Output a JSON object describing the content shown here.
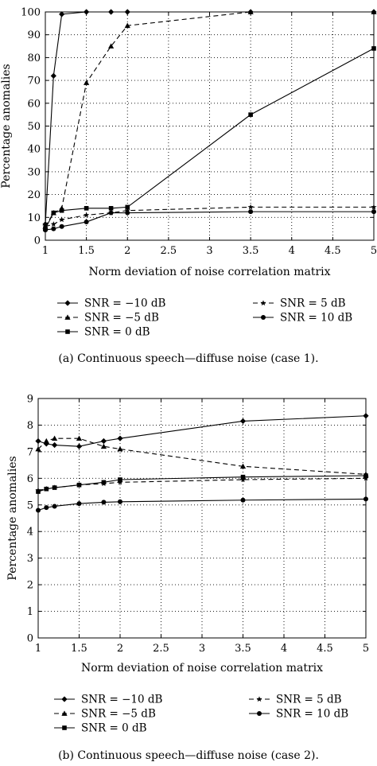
{
  "chart_data": [
    {
      "type": "line",
      "caption": "(a) Continuous speech—diffuse noise (case 1).",
      "xlabel": "Norm deviation of noise correlation matrix",
      "ylabel": "Percentage anomalies",
      "xlim": [
        1,
        5
      ],
      "ylim": [
        0,
        100
      ],
      "xticks": [
        1,
        1.5,
        2,
        2.5,
        3,
        3.5,
        4,
        4.5,
        5
      ],
      "xtick_labels": [
        "1",
        "1.5",
        "2",
        "2.5",
        "3",
        "3.5",
        "4",
        "4.5",
        "5"
      ],
      "yticks": [
        0,
        10,
        20,
        30,
        40,
        50,
        60,
        70,
        80,
        90,
        100
      ],
      "ytick_labels": [
        "0",
        "10",
        "20",
        "30",
        "40",
        "50",
        "60",
        "70",
        "80",
        "90",
        "100"
      ],
      "grid": true,
      "series": [
        {
          "name": "SNR = −10 dB",
          "marker": "diamond",
          "dash": "solid",
          "x": [
            1,
            1.1,
            1.2,
            1.5,
            1.8,
            2,
            3.5,
            5
          ],
          "y": [
            7,
            72,
            99,
            100,
            100,
            100,
            100,
            100
          ]
        },
        {
          "name": "SNR = −5 dB",
          "marker": "triangle",
          "dash": "dashed",
          "x": [
            1,
            1.1,
            1.2,
            1.5,
            1.8,
            2,
            3.5,
            5
          ],
          "y": [
            6,
            12,
            14,
            69,
            85,
            94,
            100,
            100
          ]
        },
        {
          "name": "SNR = 0 dB",
          "marker": "square",
          "dash": "solid",
          "x": [
            1,
            1.1,
            1.2,
            1.5,
            1.8,
            2,
            3.5,
            5
          ],
          "y": [
            5,
            12,
            13,
            14,
            14,
            14.5,
            55,
            84
          ]
        },
        {
          "name": "SNR = 5 dB",
          "marker": "star",
          "dash": "dashed",
          "x": [
            1,
            1.1,
            1.2,
            1.5,
            1.8,
            2,
            3.5,
            5
          ],
          "y": [
            6,
            7,
            9,
            11,
            12,
            13,
            14.5,
            14.5
          ]
        },
        {
          "name": "SNR = 10 dB",
          "marker": "circle",
          "dash": "solid",
          "x": [
            1,
            1.1,
            1.2,
            1.5,
            1.8,
            2,
            3.5,
            5
          ],
          "y": [
            4.5,
            5,
            6,
            8,
            12,
            12,
            12.5,
            12.5
          ]
        }
      ]
    },
    {
      "type": "line",
      "caption": "(b) Continuous speech—diffuse noise (case 2).",
      "xlabel": "Norm deviation of noise correlation matrix",
      "ylabel": "Percentage anomalies",
      "xlim": [
        1,
        5
      ],
      "ylim": [
        0,
        9
      ],
      "xticks": [
        1,
        1.5,
        2,
        2.5,
        3,
        3.5,
        4,
        4.5,
        5
      ],
      "xtick_labels": [
        "1",
        "1.5",
        "2",
        "2.5",
        "3",
        "3.5",
        "4",
        "4.5",
        "5"
      ],
      "yticks": [
        0,
        1,
        2,
        3,
        4,
        5,
        6,
        7,
        8,
        9
      ],
      "ytick_labels": [
        "0",
        "1",
        "2",
        "3",
        "4",
        "5",
        "6",
        "7",
        "8",
        "9"
      ],
      "grid": true,
      "series": [
        {
          "name": "SNR = −10 dB",
          "marker": "diamond",
          "dash": "solid",
          "x": [
            1,
            1.1,
            1.2,
            1.5,
            1.8,
            2,
            3.5,
            5
          ],
          "y": [
            7.4,
            7.3,
            7.25,
            7.2,
            7.4,
            7.5,
            8.15,
            8.35
          ]
        },
        {
          "name": "SNR = −5 dB",
          "marker": "triangle",
          "dash": "dashed",
          "x": [
            1,
            1.1,
            1.2,
            1.5,
            1.8,
            2,
            3.5,
            5
          ],
          "y": [
            7.1,
            7.4,
            7.5,
            7.5,
            7.2,
            7.1,
            6.45,
            6.15
          ]
        },
        {
          "name": "SNR = 0 dB",
          "marker": "square",
          "dash": "solid",
          "x": [
            1,
            1.1,
            1.2,
            1.5,
            1.8,
            2,
            3.5,
            5
          ],
          "y": [
            5.5,
            5.6,
            5.65,
            5.75,
            5.85,
            5.95,
            6.05,
            6.1
          ]
        },
        {
          "name": "SNR = 5 dB",
          "marker": "star",
          "dash": "dashed",
          "x": [
            1,
            1.1,
            1.2,
            1.5,
            1.8,
            2,
            3.5,
            5
          ],
          "y": [
            5.55,
            5.6,
            5.65,
            5.75,
            5.8,
            5.85,
            5.95,
            6.0
          ]
        },
        {
          "name": "SNR = 10 dB",
          "marker": "circle",
          "dash": "solid",
          "x": [
            1,
            1.1,
            1.2,
            1.5,
            1.8,
            2,
            3.5,
            5
          ],
          "y": [
            4.8,
            4.9,
            4.95,
            5.05,
            5.1,
            5.12,
            5.18,
            5.22
          ]
        }
      ]
    }
  ]
}
